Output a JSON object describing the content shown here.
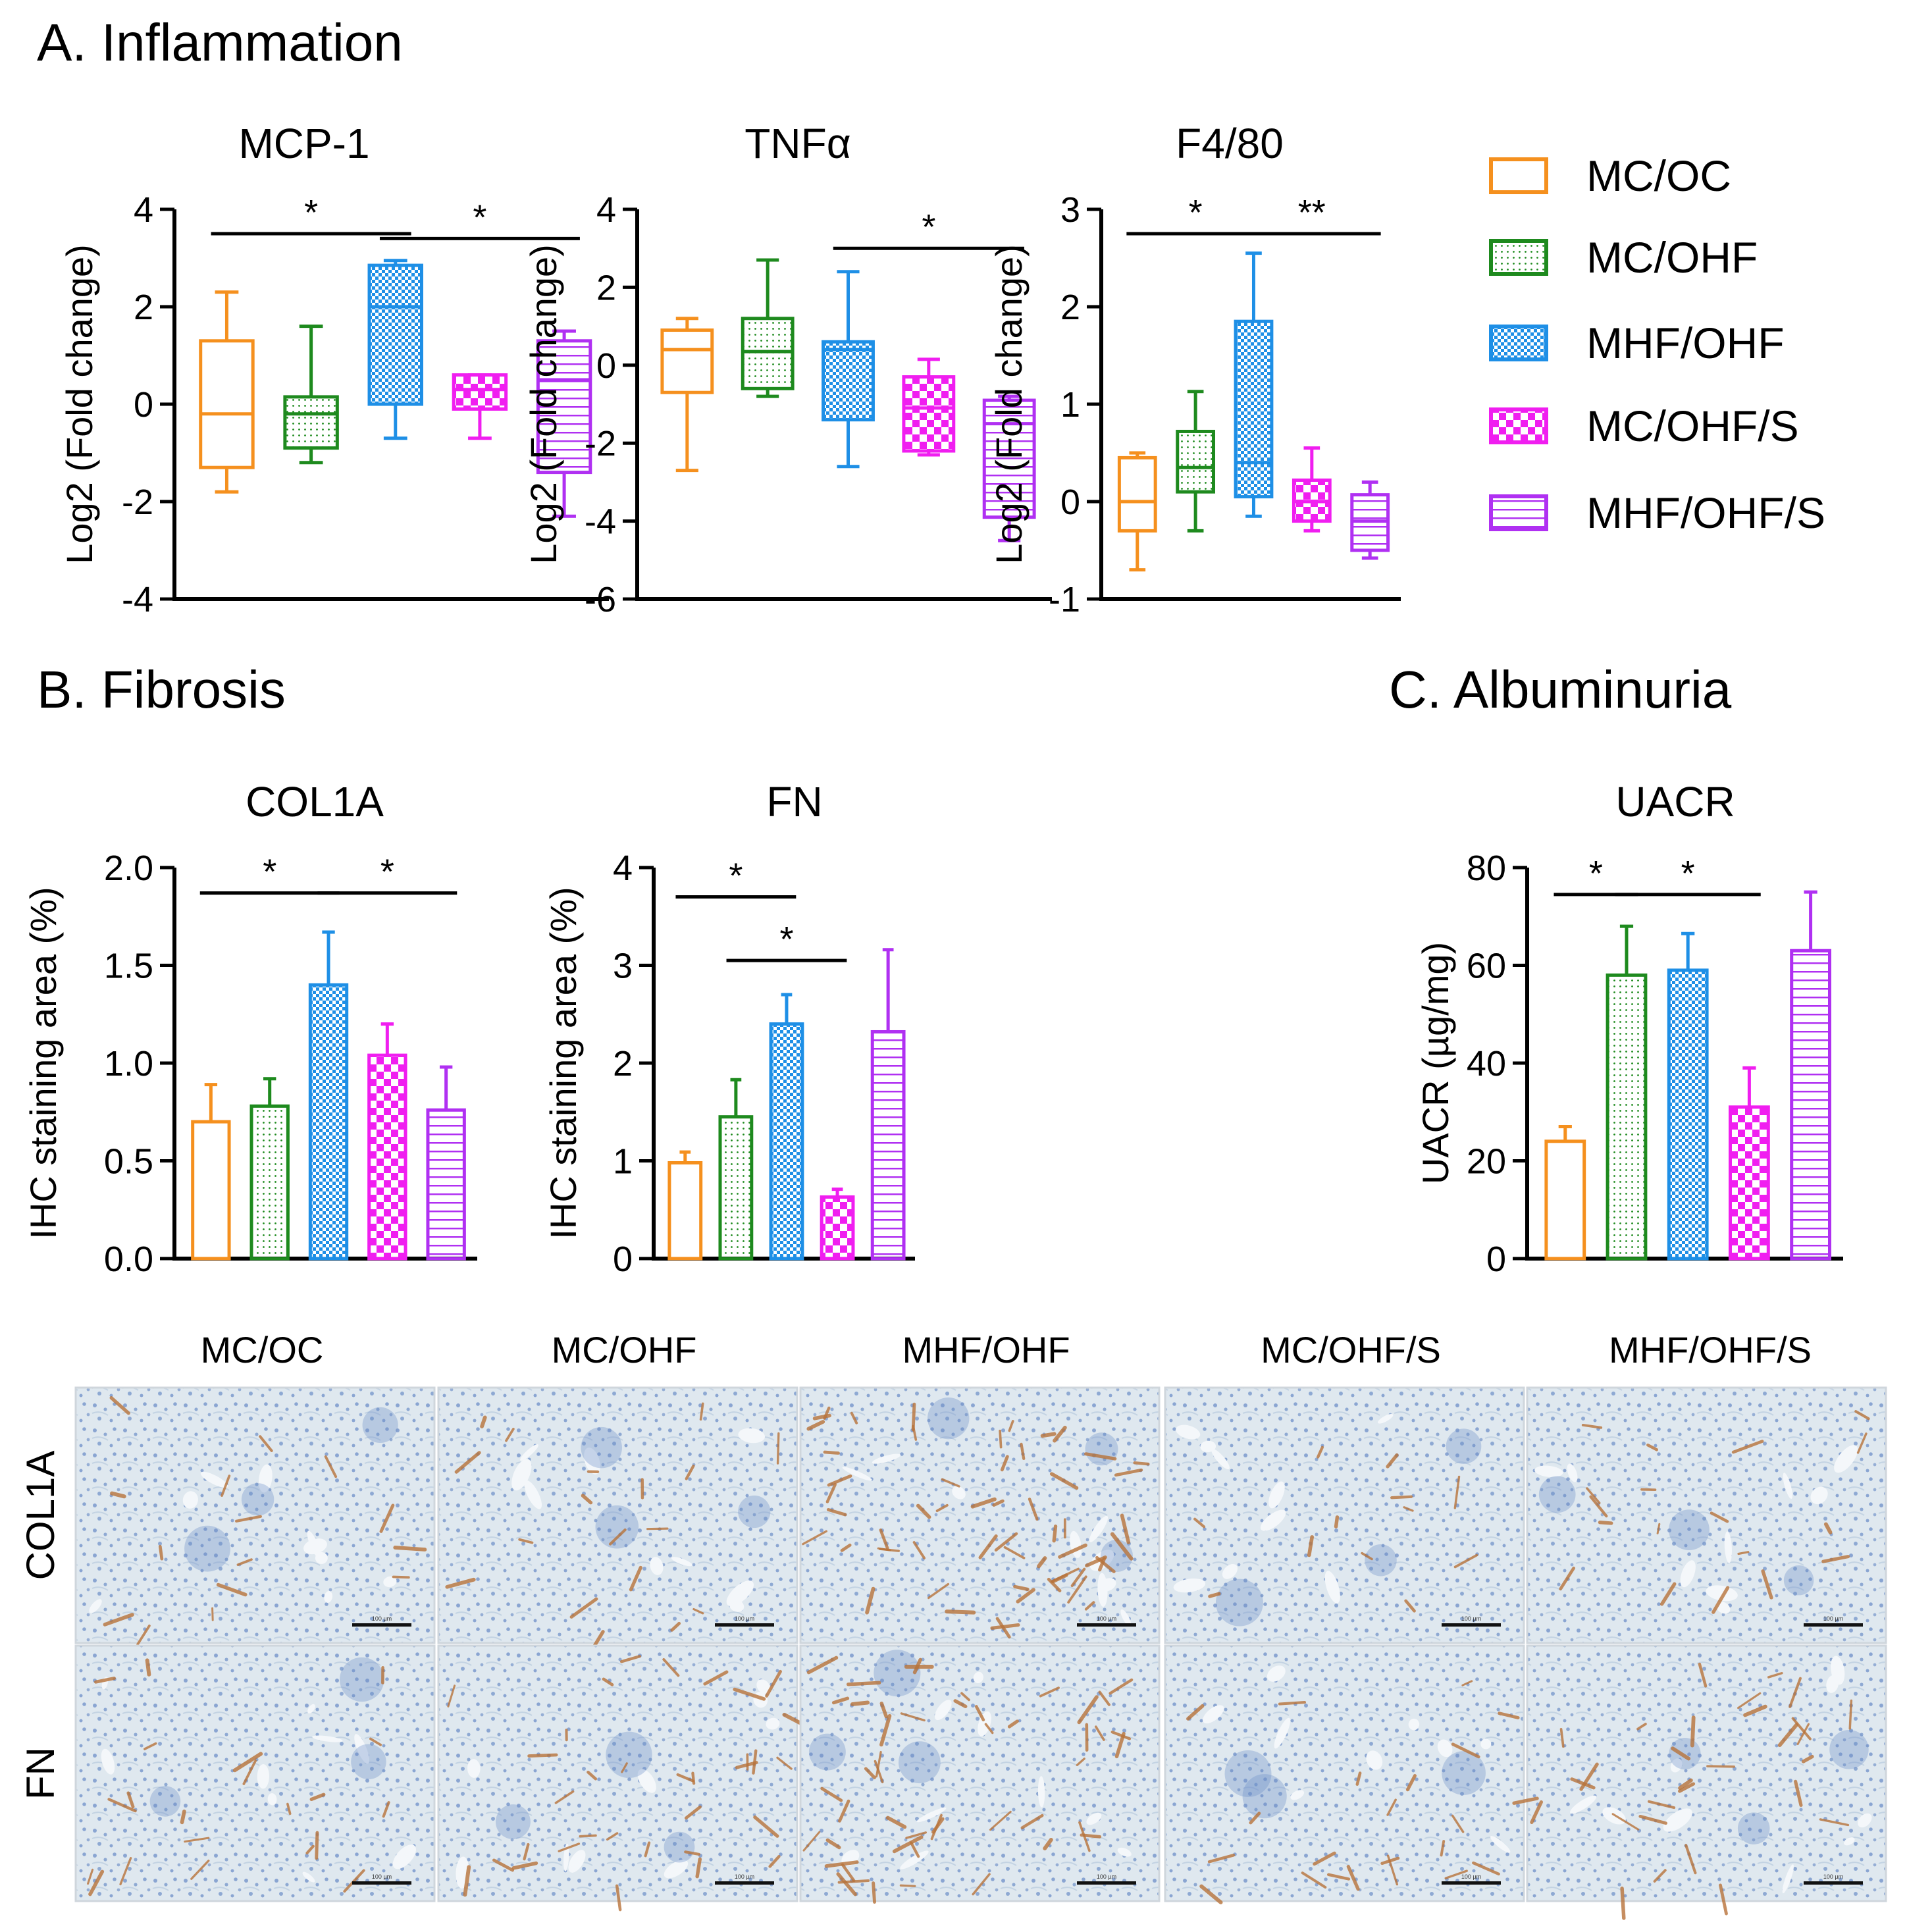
{
  "colors": {
    "MC/OC": "#f5901e",
    "MC/OHF": "#1e8a1e",
    "MHF/OHF": "#1e8fe6",
    "MC/OHF/S": "#f01ef0",
    "MHF/OHF/S": "#b030f2",
    "tissue_bg": "#dde7ee",
    "tissue_nuclei": "#6d8fc8",
    "tissue_stain": "#b8733a"
  },
  "sections": {
    "inflammation": "A. Inflammation",
    "fibrosis": "B. Fibrosis",
    "albuminuria": "C. Albuminuria"
  },
  "legend": [
    "MC/OC",
    "MC/OHF",
    "MHF/OHF",
    "MC/OHF/S",
    "MHF/OHF/S"
  ],
  "chart_data": [
    {
      "id": "mcp1",
      "type": "box",
      "title": "MCP-1",
      "ylabel": "Log2 (Fold change)",
      "ylim": [
        -4,
        4
      ],
      "yticks": [
        4,
        2,
        0,
        -2,
        -4
      ],
      "ytick_labels": [
        "4",
        "2",
        "0",
        "-2",
        "-4"
      ],
      "categories": [
        "MC/OC",
        "MC/OHF",
        "MHF/OHF",
        "MC/OHF/S",
        "MHF/OHF/S"
      ],
      "boxes": [
        {
          "min": -1.8,
          "q1": -1.3,
          "median": -0.2,
          "q3": 1.3,
          "max": 2.3
        },
        {
          "min": -1.2,
          "q1": -0.9,
          "median": -0.2,
          "q3": 0.15,
          "max": 1.6
        },
        {
          "min": -0.7,
          "q1": 0.0,
          "median": 2.0,
          "q3": 2.85,
          "max": 2.95
        },
        {
          "min": -0.7,
          "q1": -0.1,
          "median": 0.3,
          "q3": 0.6,
          "max": 0.6
        },
        {
          "min": -2.3,
          "q1": -1.4,
          "median": 0.5,
          "q3": 1.3,
          "max": 1.5
        }
      ],
      "significance": [
        {
          "from": 0,
          "to": 2,
          "y": 3.5,
          "label": "*"
        },
        {
          "from": 2,
          "to": 4,
          "y": 3.4,
          "label": "*"
        }
      ]
    },
    {
      "id": "tnfa",
      "type": "box",
      "title": "TNFα",
      "ylabel": "Log2 (Fold change)",
      "ylim": [
        -6,
        4
      ],
      "yticks": [
        4,
        2,
        0,
        -2,
        -4,
        -6
      ],
      "ytick_labels": [
        "4",
        "2",
        "0",
        "-2",
        "-4",
        "-6"
      ],
      "categories": [
        "MC/OC",
        "MC/OHF",
        "MHF/OHF",
        "MC/OHF/S",
        "MHF/OHF/S"
      ],
      "boxes": [
        {
          "min": -2.7,
          "q1": -0.7,
          "median": 0.4,
          "q3": 0.9,
          "max": 1.2
        },
        {
          "min": -0.8,
          "q1": -0.6,
          "median": 0.35,
          "q3": 1.2,
          "max": 2.7
        },
        {
          "min": -2.6,
          "q1": -1.4,
          "median": 0.4,
          "q3": 0.6,
          "max": 2.4
        },
        {
          "min": -2.3,
          "q1": -2.2,
          "median": -1.1,
          "q3": -0.3,
          "max": 0.15
        },
        {
          "min": -4.5,
          "q1": -3.9,
          "median": -1.5,
          "q3": -0.9,
          "max": -0.8
        }
      ],
      "significance": [
        {
          "from": 2,
          "to": 4,
          "y": 3.0,
          "label": "*"
        }
      ]
    },
    {
      "id": "f480",
      "type": "box",
      "title": "F4/80",
      "ylabel": "Log2 (Fold change)",
      "ylim": [
        -1,
        3
      ],
      "yticks": [
        3,
        2,
        1,
        0,
        -1
      ],
      "ytick_labels": [
        "3",
        "2",
        "1",
        "0",
        "-1"
      ],
      "categories": [
        "MC/OC",
        "MC/OHF",
        "MHF/OHF",
        "MC/OHF/S",
        "MHF/OHF/S"
      ],
      "boxes": [
        {
          "min": -0.7,
          "q1": -0.3,
          "median": 0.0,
          "q3": 0.45,
          "max": 0.5
        },
        {
          "min": -0.3,
          "q1": 0.1,
          "median": 0.35,
          "q3": 0.72,
          "max": 1.13
        },
        {
          "min": -0.15,
          "q1": 0.05,
          "median": 0.4,
          "q3": 1.85,
          "max": 2.55
        },
        {
          "min": -0.3,
          "q1": -0.2,
          "median": 0.0,
          "q3": 0.22,
          "max": 0.55
        },
        {
          "min": -0.58,
          "q1": -0.5,
          "median": -0.2,
          "q3": 0.07,
          "max": 0.2
        }
      ],
      "significance": [
        {
          "from": 0,
          "to": 2,
          "y": 2.75,
          "label": "*"
        },
        {
          "from": 2,
          "to": 4,
          "y": 2.75,
          "label": "**"
        }
      ]
    },
    {
      "id": "col1a",
      "type": "bar",
      "title": "COL1A",
      "ylabel": "IHC staining area (%)",
      "ylim": [
        0,
        2.0
      ],
      "yticks": [
        2.0,
        1.5,
        1.0,
        0.5,
        0.0
      ],
      "ytick_labels": [
        "2.0",
        "1.5",
        "1.0",
        "0.5",
        "0.0"
      ],
      "categories": [
        "MC/OC",
        "MC/OHF",
        "MHF/OHF",
        "MC/OHF/S",
        "MHF/OHF/S"
      ],
      "values": [
        0.7,
        0.78,
        1.4,
        1.04,
        0.76
      ],
      "errors": [
        0.19,
        0.14,
        0.27,
        0.16,
        0.22
      ],
      "significance": [
        {
          "from": 0,
          "to": 2,
          "y": 1.87,
          "label": "*"
        },
        {
          "from": 2,
          "to": 4,
          "y": 1.87,
          "label": "*"
        }
      ]
    },
    {
      "id": "fn",
      "type": "bar",
      "title": "FN",
      "ylabel": "IHC staining area (%)",
      "ylim": [
        0,
        4
      ],
      "yticks": [
        4,
        3,
        2,
        1,
        0
      ],
      "ytick_labels": [
        "4",
        "3",
        "2",
        "1",
        "0"
      ],
      "categories": [
        "MC/OC",
        "MC/OHF",
        "MHF/OHF",
        "MC/OHF/S",
        "MHF/OHF/S"
      ],
      "values": [
        0.98,
        1.45,
        2.4,
        0.63,
        2.32
      ],
      "errors": [
        0.11,
        0.38,
        0.3,
        0.08,
        0.84
      ],
      "significance": [
        {
          "from": 0,
          "to": 2,
          "y": 3.7,
          "label": "*"
        },
        {
          "from": 1,
          "to": 3,
          "y": 3.05,
          "label": "*"
        }
      ]
    },
    {
      "id": "uacr",
      "type": "bar",
      "title": "UACR",
      "ylabel": "UACR (µg/mg)",
      "ylim": [
        0,
        80
      ],
      "yticks": [
        80,
        60,
        40,
        20,
        0
      ],
      "ytick_labels": [
        "80",
        "60",
        "40",
        "20",
        "0"
      ],
      "categories": [
        "MC/OC",
        "MC/OHF",
        "MHF/OHF",
        "MC/OHF/S",
        "MHF/OHF/S"
      ],
      "values": [
        24,
        58,
        59,
        31,
        63
      ],
      "errors": [
        3,
        10,
        7.5,
        8,
        12
      ],
      "significance": [
        {
          "from": 0,
          "to": 1,
          "y": 74.5,
          "label": "*"
        },
        {
          "from": 1,
          "to": 3,
          "y": 74.5,
          "label": "*"
        }
      ]
    }
  ],
  "micrographs": {
    "column_labels": [
      "MC/OC",
      "MC/OHF",
      "MHF/OHF",
      "MC/OHF/S",
      "MHF/OHF/S"
    ],
    "row_labels": [
      "COL1A",
      "FN"
    ],
    "scale_bar_label": "100 µm",
    "stain_intensity": [
      [
        0.25,
        0.3,
        0.95,
        0.2,
        0.3
      ],
      [
        0.35,
        0.55,
        0.8,
        0.35,
        0.5
      ]
    ]
  }
}
